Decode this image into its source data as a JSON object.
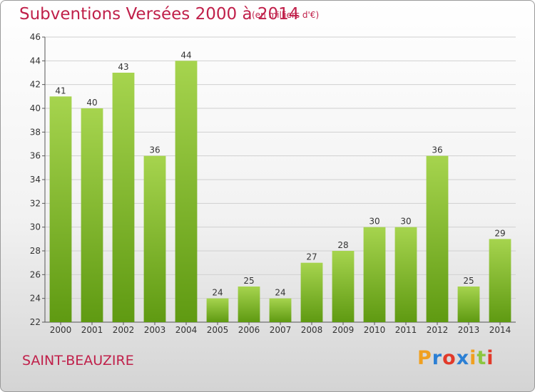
{
  "header": {
    "title": "Subventions Versées 2000 à 2014",
    "subtitle": "(en milliers d'€)"
  },
  "footer": {
    "commune": "SAINT-BEAUZIRE",
    "logo_letters": [
      "P",
      "r",
      "o",
      "x",
      "i",
      "t",
      "i"
    ],
    "logo_colors": [
      "#f0a020",
      "#2b7fd4",
      "#e23a2a",
      "#2b7fd4",
      "#f0a020",
      "#8cc63f",
      "#e23a2a"
    ]
  },
  "colors": {
    "bar_light": "#a6d44e",
    "bar_dark": "#5f9a12",
    "title": "#c0204a",
    "grid": "#d0d0d0"
  },
  "chart_data": {
    "type": "bar",
    "title": "Subventions Versées 2000 à 2014",
    "subtitle": "(en milliers d'€)",
    "xlabel": "",
    "ylabel": "",
    "categories": [
      "2000",
      "2001",
      "2002",
      "2003",
      "2004",
      "2005",
      "2006",
      "2007",
      "2008",
      "2009",
      "2010",
      "2011",
      "2012",
      "2013",
      "2014"
    ],
    "values": [
      41,
      40,
      43,
      36,
      44,
      24,
      25,
      24,
      27,
      28,
      30,
      30,
      36,
      25,
      29
    ],
    "ylim": [
      22,
      46
    ],
    "yticks": [
      22,
      24,
      26,
      28,
      30,
      32,
      34,
      36,
      38,
      40,
      42,
      44,
      46
    ],
    "grid": true,
    "data_labels": true
  }
}
